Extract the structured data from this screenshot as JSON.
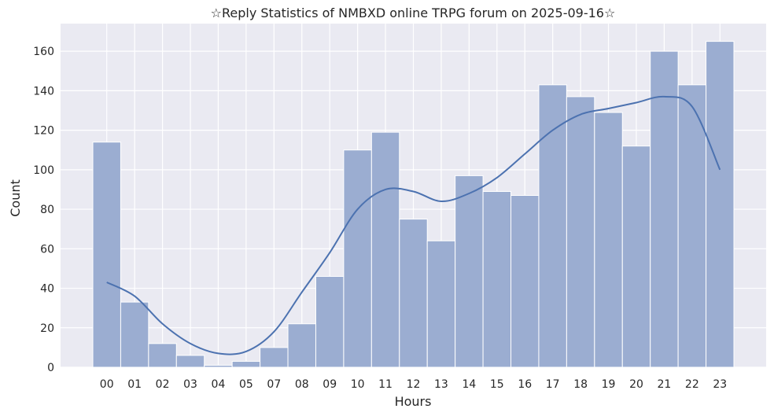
{
  "chart_data": {
    "type": "bar",
    "title": "☆Reply Statistics of NMBXD online TRPG forum on 2025-09-16☆",
    "xlabel": "Hours",
    "ylabel": "Count",
    "categories": [
      "00",
      "01",
      "02",
      "03",
      "04",
      "05",
      "07",
      "08",
      "09",
      "10",
      "11",
      "12",
      "13",
      "14",
      "15",
      "16",
      "17",
      "18",
      "19",
      "20",
      "21",
      "22",
      "23"
    ],
    "values": [
      114,
      33,
      12,
      6,
      1,
      3,
      10,
      22,
      46,
      110,
      119,
      75,
      64,
      97,
      89,
      87,
      143,
      137,
      129,
      112,
      160,
      143,
      165
    ],
    "ylim": [
      0,
      174
    ],
    "yticks": [
      0,
      20,
      40,
      60,
      80,
      100,
      120,
      140,
      160
    ],
    "grid": true,
    "kde": {
      "x": [
        "00",
        "01",
        "02",
        "03",
        "04",
        "05",
        "07",
        "08",
        "09",
        "10",
        "11",
        "12",
        "13",
        "14",
        "15",
        "16",
        "17",
        "18",
        "19",
        "20",
        "21",
        "22",
        "23"
      ],
      "y": [
        43,
        36,
        22,
        12,
        7,
        8,
        18,
        38,
        58,
        80,
        90,
        89,
        84,
        88,
        96,
        108,
        120,
        128,
        131,
        134,
        137,
        132,
        100
      ]
    },
    "colors": {
      "bar_fill": "#9badd1",
      "bar_edge": "#ffffff",
      "kde_line": "#4c72b0",
      "plot_bg": "#eaeaf2",
      "grid": "#ffffff"
    }
  }
}
